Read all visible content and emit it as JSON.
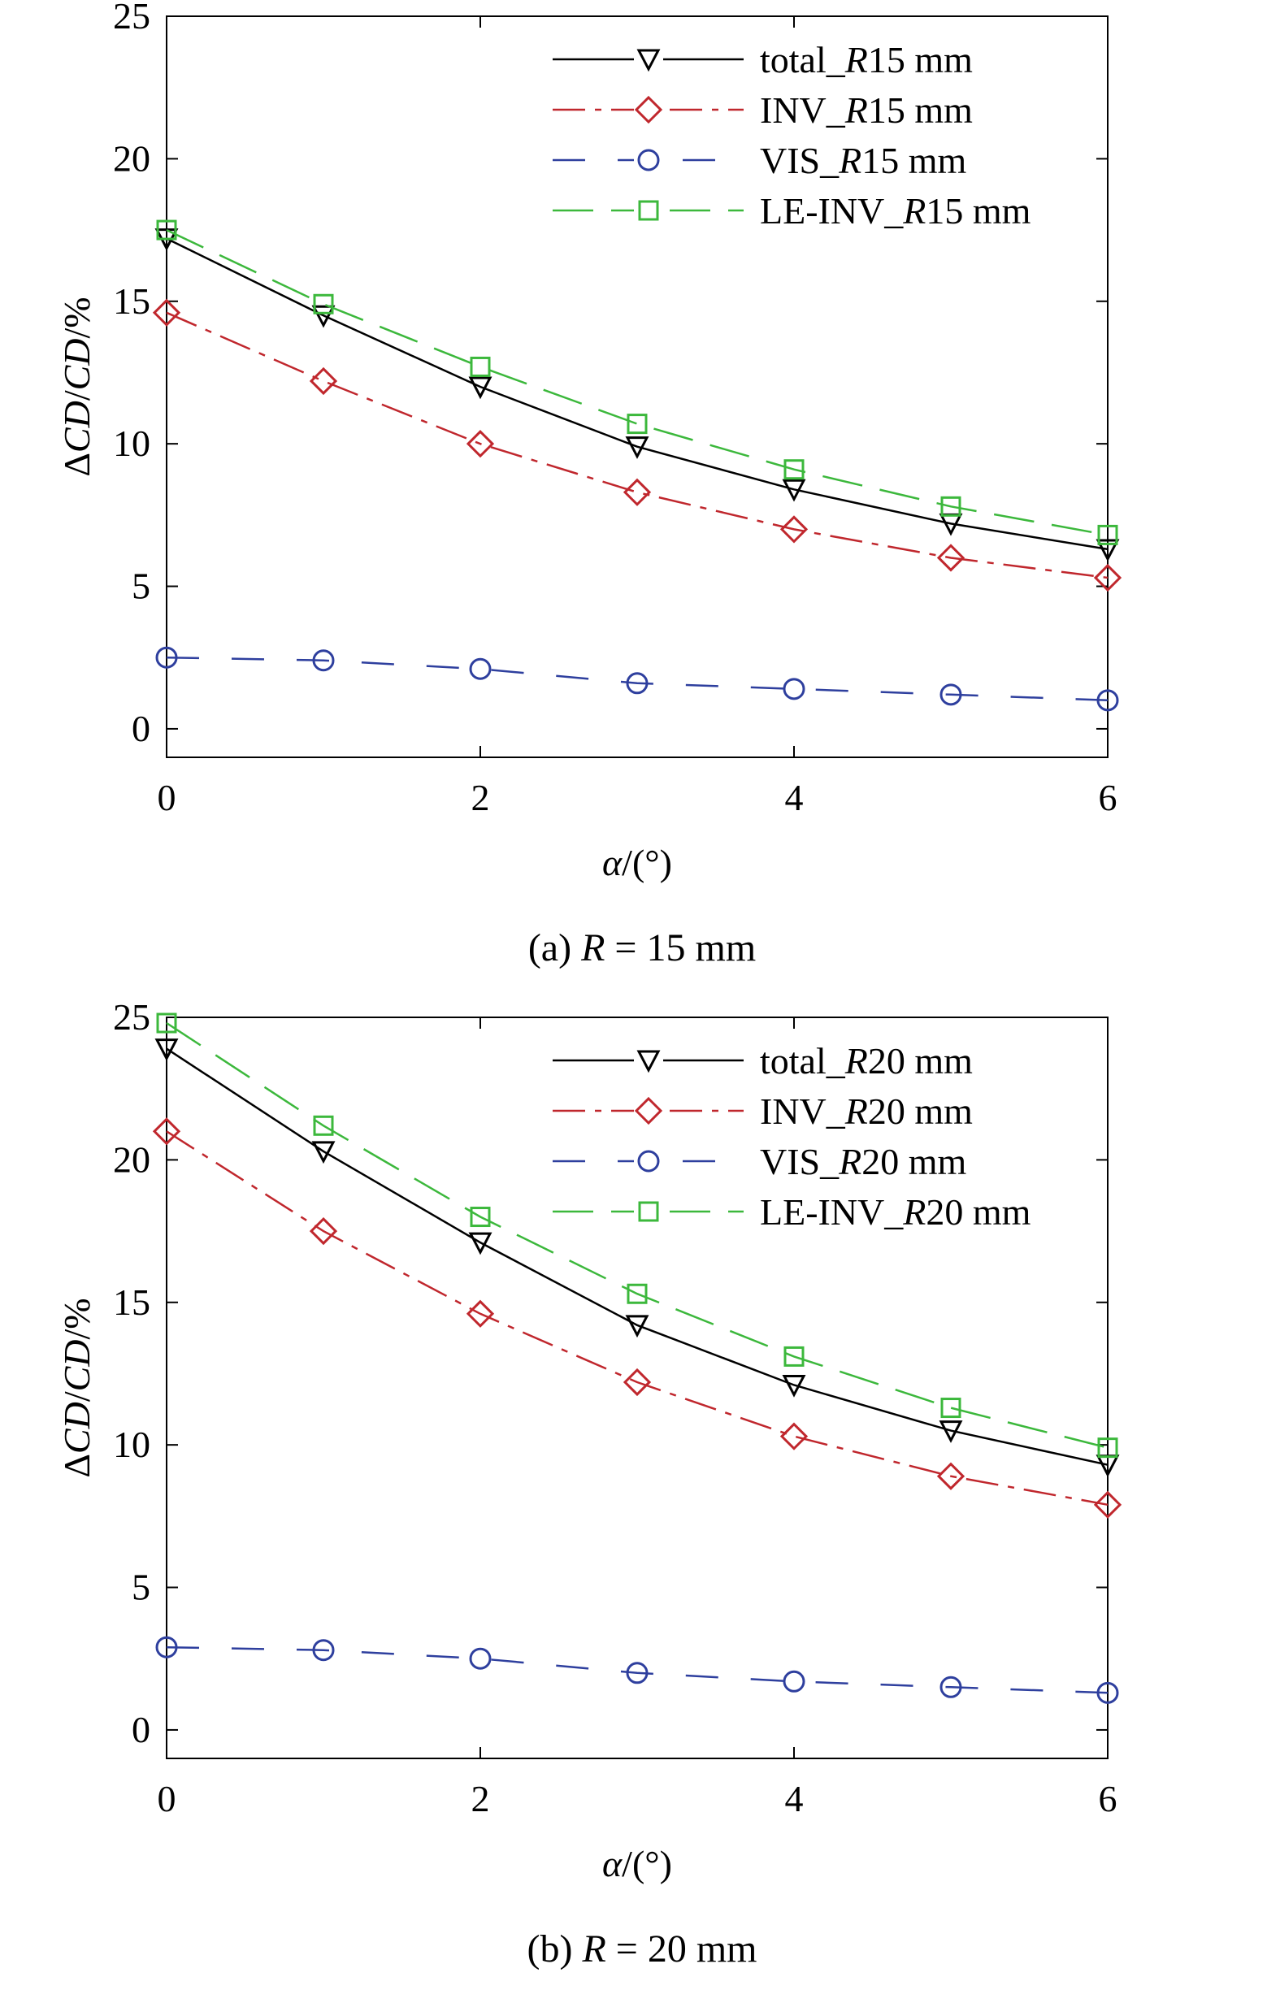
{
  "chart_data": [
    {
      "type": "line",
      "caption": "(a) R = 15 mm",
      "xlabel": "α/(°)",
      "ylabel": "ΔCD/CD/%",
      "xlim": [
        0,
        6
      ],
      "ylim": [
        -1,
        25
      ],
      "xticks": [
        0,
        2,
        4,
        6
      ],
      "yticks": [
        0,
        5,
        10,
        15,
        20,
        25
      ],
      "legend_position": "top-right",
      "grid": false,
      "x": [
        0,
        1,
        2,
        3,
        4,
        5,
        6
      ],
      "series": [
        {
          "name": "total_R15 mm",
          "color": "#000000",
          "dash": "solid",
          "marker": "triangle-down",
          "values": [
            17.2,
            14.5,
            12.0,
            9.9,
            8.4,
            7.2,
            6.3
          ]
        },
        {
          "name": "INV_R15 mm",
          "color": "#c0272d",
          "dash": "dashdot",
          "marker": "diamond",
          "values": [
            14.6,
            12.2,
            10.0,
            8.3,
            7.0,
            6.0,
            5.3
          ]
        },
        {
          "name": "VIS_R15 mm",
          "color": "#2e3f9e",
          "dash": "dashed",
          "marker": "circle",
          "values": [
            2.5,
            2.4,
            2.1,
            1.6,
            1.4,
            1.2,
            1.0
          ]
        },
        {
          "name": "LE-INV_R15 mm",
          "color": "#3cb83c",
          "dash": "longdash",
          "marker": "square",
          "values": [
            17.5,
            14.9,
            12.7,
            10.7,
            9.1,
            7.8,
            6.8
          ]
        }
      ]
    },
    {
      "type": "line",
      "caption": "(b) R = 20 mm",
      "xlabel": "α/(°)",
      "ylabel": "ΔCD/CD/%",
      "xlim": [
        0,
        6
      ],
      "ylim": [
        -1,
        25
      ],
      "xticks": [
        0,
        2,
        4,
        6
      ],
      "yticks": [
        0,
        5,
        10,
        15,
        20,
        25
      ],
      "legend_position": "top-right",
      "grid": false,
      "x": [
        0,
        1,
        2,
        3,
        4,
        5,
        6
      ],
      "series": [
        {
          "name": "total_R20 mm",
          "color": "#000000",
          "dash": "solid",
          "marker": "triangle-down",
          "values": [
            23.9,
            20.3,
            17.1,
            14.2,
            12.1,
            10.5,
            9.3
          ]
        },
        {
          "name": "INV_R20 mm",
          "color": "#c0272d",
          "dash": "dashdot",
          "marker": "diamond",
          "values": [
            21.0,
            17.5,
            14.6,
            12.2,
            10.3,
            8.9,
            7.9
          ]
        },
        {
          "name": "VIS_R20 mm",
          "color": "#2e3f9e",
          "dash": "dashed",
          "marker": "circle",
          "values": [
            2.9,
            2.8,
            2.5,
            2.0,
            1.7,
            1.5,
            1.3
          ]
        },
        {
          "name": "LE-INV_R20 mm",
          "color": "#3cb83c",
          "dash": "longdash",
          "marker": "square",
          "values": [
            24.8,
            21.2,
            18.0,
            15.3,
            13.1,
            11.3,
            9.9
          ]
        }
      ]
    }
  ]
}
